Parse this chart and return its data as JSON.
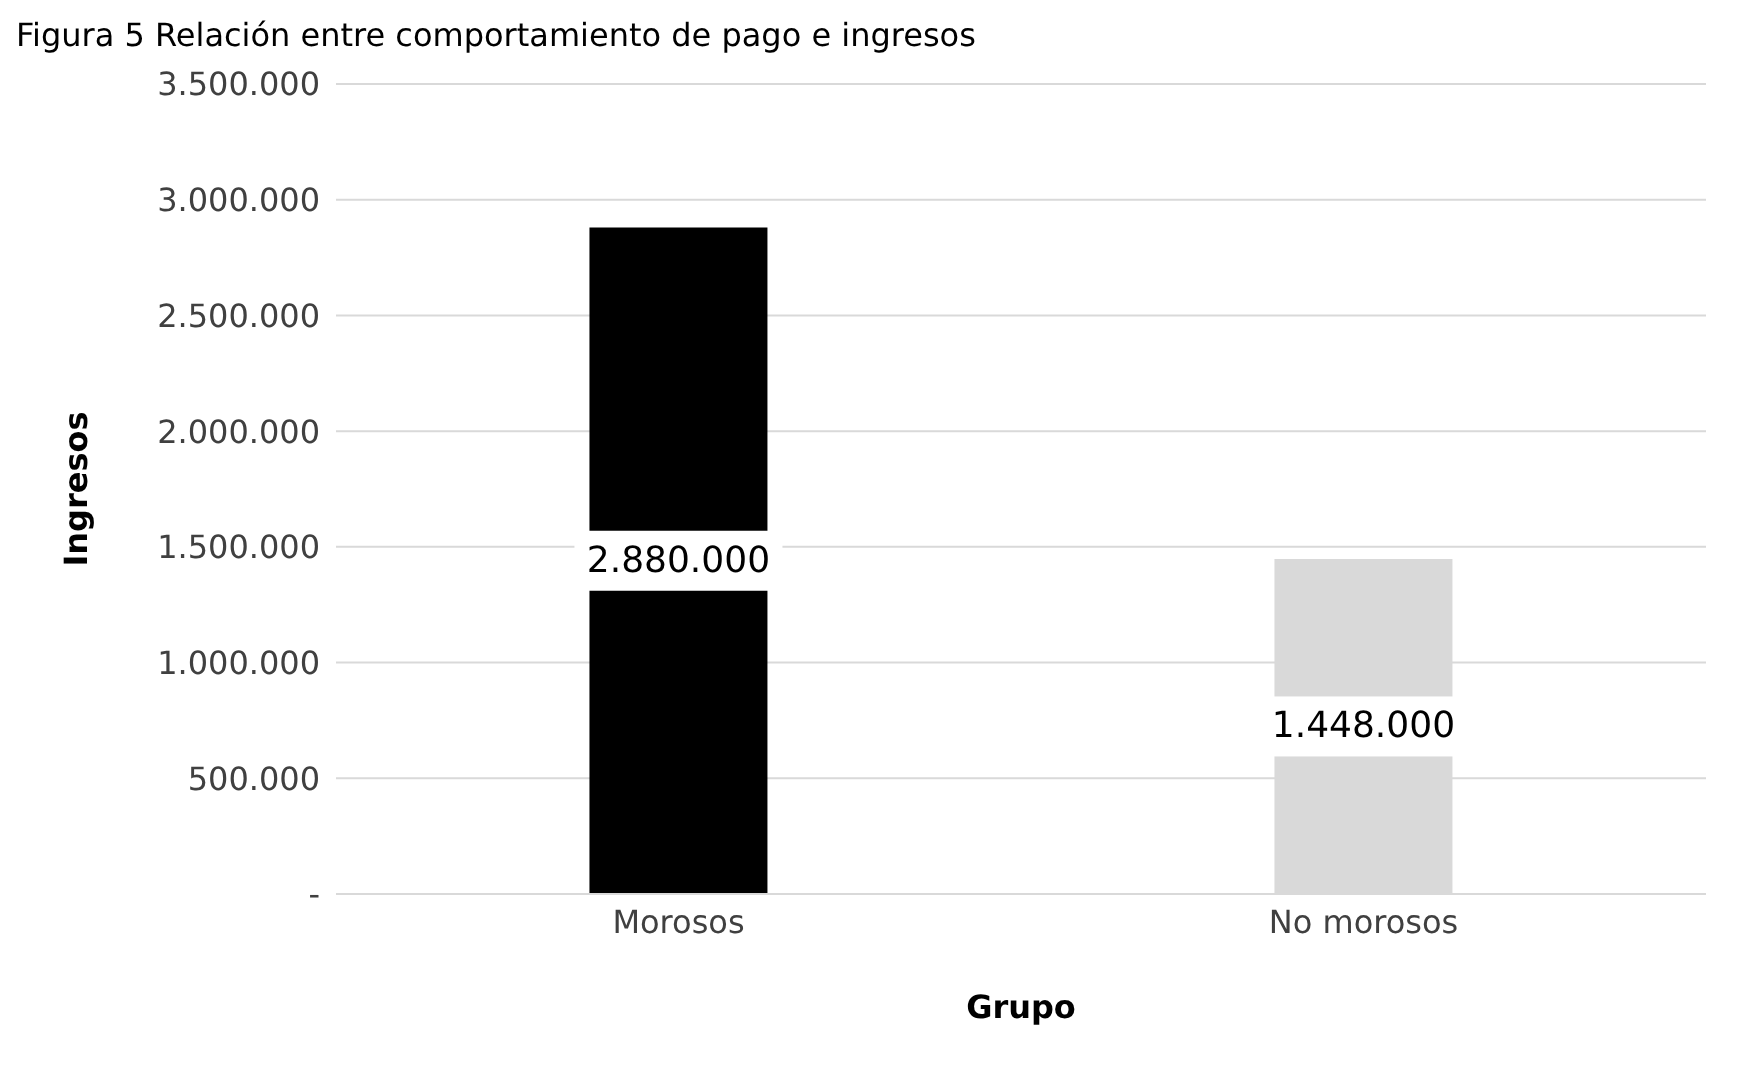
{
  "chart_data": {
    "type": "bar",
    "title": "Figura 5 Relación entre comportamiento de pago e ingresos",
    "xlabel": "Grupo",
    "ylabel": "Ingresos",
    "categories": [
      "Morosos",
      "No morosos"
    ],
    "values": [
      2880000,
      1448000
    ],
    "colors": [
      "#000000",
      "#d9d9d9"
    ],
    "ylim": [
      0,
      3500000
    ],
    "yticks": [
      {
        "value": 0,
        "label": "-"
      },
      {
        "value": 500000,
        "label": "500.000"
      },
      {
        "value": 1000000,
        "label": "1.000.000"
      },
      {
        "value": 1500000,
        "label": "1.500.000"
      },
      {
        "value": 2000000,
        "label": "2.000.000"
      },
      {
        "value": 2500000,
        "label": "2.500.000"
      },
      {
        "value": 3000000,
        "label": "3.000.000"
      },
      {
        "value": 3500000,
        "label": "3.500.000"
      }
    ],
    "value_labels": [
      "2.880.000",
      "1.448.000"
    ],
    "grid": "y",
    "legend": false
  }
}
